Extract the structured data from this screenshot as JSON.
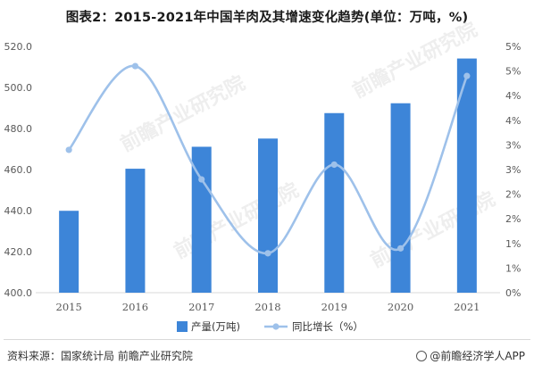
{
  "header": {
    "title": "图表2：2015-2021年中国羊肉及其增速变化趋势(单位：万吨，%)"
  },
  "footer": {
    "source": "资料来源：国家统计局 前瞻产业研究院",
    "brand": "@前瞻经济学人APP"
  },
  "watermark": {
    "text": "前瞻产业研究院"
  },
  "colors": {
    "bar": "#3d85d8",
    "line": "#9ec1ea",
    "axis_text": "#595959",
    "gridline": "#d9d9d9"
  },
  "chart_data": {
    "type": "bar+line",
    "categories": [
      "2015",
      "2016",
      "2017",
      "2018",
      "2019",
      "2020",
      "2021"
    ],
    "series": [
      {
        "name": "产量(万吨)",
        "type": "bar",
        "axis": "left",
        "values": [
          439.9,
          460.4,
          471.1,
          475.1,
          487.5,
          492.3,
          514.1
        ]
      },
      {
        "name": "同比增长（%）",
        "type": "line",
        "axis": "right",
        "values": [
          2.9,
          4.6,
          2.3,
          0.8,
          2.6,
          0.9,
          4.4
        ]
      }
    ],
    "left_axis": {
      "min": 400,
      "max": 520,
      "ticks": [
        "400.0",
        "420.0",
        "440.0",
        "460.0",
        "480.0",
        "500.0",
        "520.0"
      ]
    },
    "right_axis": {
      "min": 0,
      "max": 5,
      "ticks": [
        "0%",
        "1%",
        "1%",
        "2%",
        "2%",
        "3%",
        "3%",
        "4%",
        "4%",
        "5%",
        "5%"
      ]
    },
    "grid": false,
    "legend": "bottom-center"
  }
}
